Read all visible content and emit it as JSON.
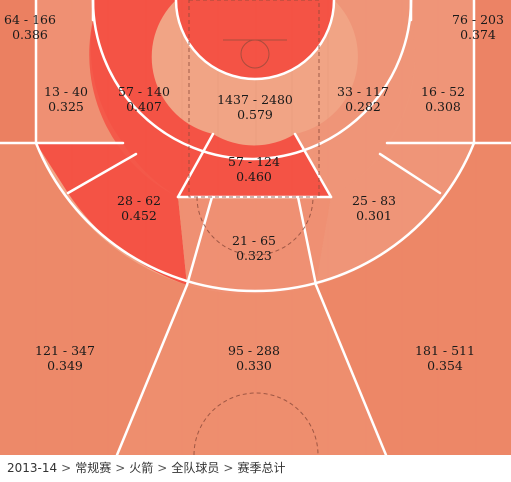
{
  "chart_data": {
    "type": "heatmap",
    "subtype": "basketball-shot-chart",
    "zones": [
      {
        "id": "corner-left-3",
        "made": 64,
        "attempts": 166,
        "pct": 0.386,
        "text_made": "64 - 166",
        "text_pct": "0.386",
        "color": "#e97a5c"
      },
      {
        "id": "corner-right-3",
        "made": 76,
        "attempts": 203,
        "pct": 0.374,
        "text_made": "76 - 203",
        "text_pct": "0.374",
        "color": "#ea7d60"
      },
      {
        "id": "left-baseline-mid",
        "made": 13,
        "attempts": 40,
        "pct": 0.325,
        "text_made": "13 - 40",
        "text_pct": "0.325",
        "color": "#ee8d70"
      },
      {
        "id": "left-paint-side",
        "made": 57,
        "attempts": 140,
        "pct": 0.407,
        "text_made": "57 - 140",
        "text_pct": "0.407",
        "color": "#f4463b"
      },
      {
        "id": "restricted-area",
        "made": 1437,
        "attempts": 2480,
        "pct": 0.579,
        "text_made": "1437 - 2480",
        "text_pct": "0.579",
        "color": "#f4463b"
      },
      {
        "id": "right-paint-side",
        "made": 33,
        "attempts": 117,
        "pct": 0.282,
        "text_made": "33 - 117",
        "text_pct": "0.282",
        "color": "#ee9276"
      },
      {
        "id": "right-baseline-mid",
        "made": 16,
        "attempts": 52,
        "pct": 0.308,
        "text_made": "16 - 52",
        "text_pct": "0.308",
        "color": "#ee9276"
      },
      {
        "id": "paint",
        "made": 57,
        "attempts": 124,
        "pct": 0.46,
        "text_made": "57 - 124",
        "text_pct": "0.460",
        "color": "#f4463b"
      },
      {
        "id": "left-elbow-mid",
        "made": 28,
        "attempts": 62,
        "pct": 0.452,
        "text_made": "28 - 62",
        "text_pct": "0.452",
        "color": "#f4463b"
      },
      {
        "id": "right-elbow-mid",
        "made": 25,
        "attempts": 83,
        "pct": 0.301,
        "text_made": "25 - 83",
        "text_pct": "0.301",
        "color": "#ee9276"
      },
      {
        "id": "top-key-mid",
        "made": 21,
        "attempts": 65,
        "pct": 0.323,
        "text_made": "21 - 65",
        "text_pct": "0.323",
        "color": "#ee8d70"
      },
      {
        "id": "left-wing-3",
        "made": 121,
        "attempts": 347,
        "pct": 0.349,
        "text_made": "121 - 347",
        "text_pct": "0.349",
        "color": "#ec8465"
      },
      {
        "id": "top-3",
        "made": 95,
        "attempts": 288,
        "pct": 0.33,
        "text_made": "95 - 288",
        "text_pct": "0.330",
        "color": "#ed896a"
      },
      {
        "id": "right-wing-3",
        "made": 181,
        "attempts": 511,
        "pct": 0.354,
        "text_made": "181 - 511",
        "text_pct": "0.354",
        "color": "#ec8263"
      }
    ]
  },
  "breadcrumb": {
    "items": [
      "2013-14",
      "常规赛",
      "火箭",
      "全队球员",
      "赛季总计"
    ],
    "separator": ">"
  }
}
